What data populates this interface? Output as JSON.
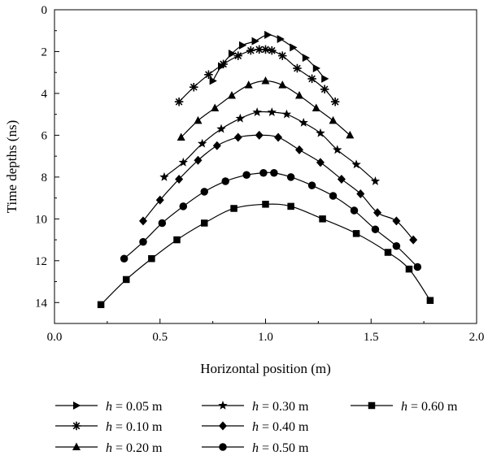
{
  "chart_data": {
    "type": "line",
    "xlabel": "Horizontal position (m)",
    "ylabel": "Time depths (ns)",
    "xlim": [
      0.0,
      2.0
    ],
    "ylim": [
      15,
      0
    ],
    "y_inverted": true,
    "xticks": [
      "0.0",
      "0.5",
      "1.0",
      "1.5",
      "2.0"
    ],
    "yticks": [
      "0",
      "2",
      "4",
      "6",
      "8",
      "10",
      "12",
      "14"
    ],
    "grid": false,
    "legend_position": "bottom",
    "series": [
      {
        "name": "h = 0.05 m",
        "name_var": "h",
        "name_rest": " = 0.05 m",
        "marker": "triangle-right",
        "color": "#000000",
        "x": [
          0.75,
          0.79,
          0.84,
          0.89,
          0.95,
          1.01,
          1.07,
          1.13,
          1.19,
          1.24,
          1.28
        ],
        "y": [
          3.4,
          2.7,
          2.1,
          1.7,
          1.5,
          1.2,
          1.4,
          1.8,
          2.3,
          2.8,
          3.3
        ]
      },
      {
        "name": "h = 0.10 m",
        "name_var": "h",
        "name_rest": " = 0.10 m",
        "marker": "asterisk",
        "color": "#000000",
        "x": [
          0.59,
          0.66,
          0.73,
          0.8,
          0.87,
          0.93,
          0.97,
          1.0,
          1.03,
          1.08,
          1.15,
          1.22,
          1.28,
          1.33
        ],
        "y": [
          4.4,
          3.7,
          3.1,
          2.6,
          2.2,
          1.95,
          1.9,
          1.9,
          1.95,
          2.2,
          2.8,
          3.3,
          3.8,
          4.4
        ]
      },
      {
        "name": "h = 0.20 m",
        "name_var": "h",
        "name_rest": " = 0.20 m",
        "marker": "triangle-up",
        "color": "#000000",
        "x": [
          0.6,
          0.68,
          0.76,
          0.84,
          0.92,
          1.0,
          1.08,
          1.16,
          1.24,
          1.32,
          1.4
        ],
        "y": [
          6.1,
          5.3,
          4.7,
          4.1,
          3.6,
          3.4,
          3.6,
          4.1,
          4.7,
          5.3,
          6.0
        ]
      },
      {
        "name": "h = 0.30 m",
        "name_var": "h",
        "name_rest": " = 0.30 m",
        "marker": "star",
        "color": "#000000",
        "x": [
          0.52,
          0.61,
          0.7,
          0.79,
          0.88,
          0.96,
          1.03,
          1.1,
          1.18,
          1.26,
          1.34,
          1.43,
          1.52
        ],
        "y": [
          8.0,
          7.3,
          6.4,
          5.7,
          5.2,
          4.9,
          4.9,
          5.0,
          5.4,
          5.9,
          6.7,
          7.4,
          8.2
        ]
      },
      {
        "name": "h = 0.40 m",
        "name_var": "h",
        "name_rest": " = 0.40 m",
        "marker": "diamond",
        "color": "#000000",
        "x": [
          0.42,
          0.5,
          0.59,
          0.68,
          0.77,
          0.87,
          0.97,
          1.06,
          1.16,
          1.26,
          1.36,
          1.45,
          1.53,
          1.62,
          1.7
        ],
        "y": [
          10.1,
          9.1,
          8.1,
          7.2,
          6.5,
          6.1,
          6.0,
          6.1,
          6.7,
          7.3,
          8.1,
          8.8,
          9.7,
          10.1,
          11.0
        ]
      },
      {
        "name": "h = 0.50 m",
        "name_var": "h",
        "name_rest": " = 0.50 m",
        "marker": "circle",
        "color": "#000000",
        "x": [
          0.33,
          0.42,
          0.51,
          0.61,
          0.71,
          0.81,
          0.91,
          0.99,
          1.04,
          1.12,
          1.22,
          1.32,
          1.42,
          1.52,
          1.62,
          1.72
        ],
        "y": [
          11.9,
          11.1,
          10.2,
          9.4,
          8.7,
          8.2,
          7.9,
          7.8,
          7.8,
          8.0,
          8.4,
          8.9,
          9.6,
          10.5,
          11.3,
          12.3
        ]
      },
      {
        "name": "h = 0.60 m",
        "name_var": "h",
        "name_rest": " = 0.60 m",
        "marker": "square",
        "color": "#000000",
        "x": [
          0.22,
          0.34,
          0.46,
          0.58,
          0.71,
          0.85,
          1.0,
          1.12,
          1.27,
          1.43,
          1.58,
          1.68,
          1.78
        ],
        "y": [
          14.1,
          12.9,
          11.9,
          11.0,
          10.2,
          9.5,
          9.3,
          9.4,
          10.0,
          10.7,
          11.6,
          12.4,
          13.9
        ]
      }
    ]
  }
}
